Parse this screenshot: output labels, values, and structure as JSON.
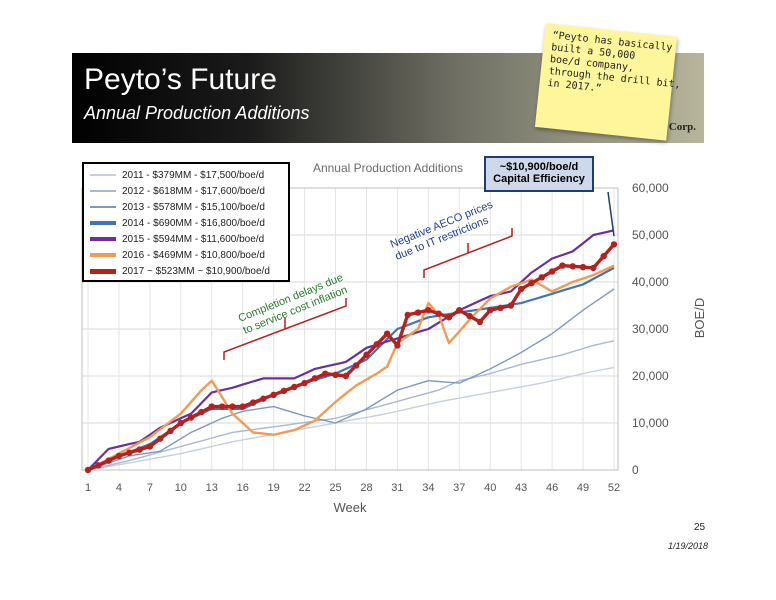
{
  "slide": {
    "title": "Peyto’s Future",
    "subtitle": "Annual Production Additions",
    "logo_text": "Corp.",
    "note_lines": [
      "“Peyto has basically",
      "built a 50,000",
      "boe/d company,",
      "through the drill bit,",
      "in 2017.”"
    ],
    "callout_line1": "~$10,900/boe/d",
    "callout_line2": "Capital Efficiency",
    "page_number": "25",
    "date": "1/19/2018",
    "annotation_completion_line1": "Completion delays due",
    "annotation_completion_line2": "to service cost inflation",
    "annotation_aeco_line1": "Negative AECO prices",
    "annotation_aeco_line2": "due to IT restrictions"
  },
  "chart_data": {
    "type": "line",
    "title": "Annual Production Additions",
    "xlabel": "Week",
    "ylabel": "BOE/D",
    "xlim": [
      1,
      52
    ],
    "ylim": [
      0,
      60000
    ],
    "x_ticks": [
      1,
      4,
      7,
      10,
      13,
      16,
      19,
      22,
      25,
      28,
      31,
      34,
      37,
      40,
      43,
      46,
      49,
      52
    ],
    "y_ticks": [
      0,
      10000,
      20000,
      30000,
      40000,
      50000,
      60000
    ],
    "y_tick_labels": [
      "0",
      "10,000",
      "20,000",
      "30,000",
      "40,000",
      "50,000",
      "60,000"
    ],
    "grid": true,
    "legend_position": "top-left",
    "series": [
      {
        "name": "2011 - $379MM - $17,500/boe/d",
        "color": "#c5cfe0",
        "width": 1.4,
        "anchors": [
          [
            1,
            0
          ],
          [
            5,
            1500
          ],
          [
            10,
            3500
          ],
          [
            15,
            6000
          ],
          [
            20,
            8000
          ],
          [
            25,
            10000
          ],
          [
            30,
            12000
          ],
          [
            35,
            14500
          ],
          [
            40,
            16500
          ],
          [
            45,
            18500
          ],
          [
            50,
            21000
          ],
          [
            52,
            21800
          ]
        ]
      },
      {
        "name": "2012 - $618MM - $17,600/boe/d",
        "color": "#a9b8d4",
        "width": 1.4,
        "anchors": [
          [
            1,
            0
          ],
          [
            5,
            2000
          ],
          [
            10,
            5000
          ],
          [
            15,
            8000
          ],
          [
            20,
            9500
          ],
          [
            25,
            11000
          ],
          [
            30,
            14000
          ],
          [
            35,
            17000
          ],
          [
            37,
            19000
          ],
          [
            40,
            20500
          ],
          [
            43,
            22500
          ],
          [
            47,
            24500
          ],
          [
            50,
            26500
          ],
          [
            52,
            27500
          ]
        ]
      },
      {
        "name": "2013 - $578MM - $15,100/boe/d",
        "color": "#7f98c3",
        "width": 1.4,
        "anchors": [
          [
            1,
            0
          ],
          [
            5,
            3000
          ],
          [
            8,
            4000
          ],
          [
            11,
            8000
          ],
          [
            14,
            11000
          ],
          [
            16,
            12500
          ],
          [
            19,
            13500
          ],
          [
            22,
            11500
          ],
          [
            25,
            10000
          ],
          [
            28,
            13000
          ],
          [
            31,
            17000
          ],
          [
            34,
            19000
          ],
          [
            37,
            18500
          ],
          [
            40,
            21500
          ],
          [
            43,
            25000
          ],
          [
            46,
            29000
          ],
          [
            49,
            34000
          ],
          [
            52,
            38500
          ]
        ]
      },
      {
        "name": "2014 - $690MM - $16,800/boe/d",
        "color": "#3f74b8",
        "width": 2.2,
        "anchors": [
          [
            1,
            0
          ],
          [
            4,
            3000
          ],
          [
            7,
            5500
          ],
          [
            10,
            10000
          ],
          [
            13,
            13000
          ],
          [
            16,
            13000
          ],
          [
            19,
            16000
          ],
          [
            22,
            18500
          ],
          [
            25,
            20500
          ],
          [
            28,
            23500
          ],
          [
            31,
            30000
          ],
          [
            34,
            32500
          ],
          [
            37,
            33500
          ],
          [
            40,
            34500
          ],
          [
            43,
            35500
          ],
          [
            46,
            37500
          ],
          [
            49,
            39500
          ],
          [
            52,
            43000
          ]
        ]
      },
      {
        "name": "2015 - $594MM - $11,600/boe/d",
        "color": "#6b2fa0",
        "width": 2.2,
        "anchors": [
          [
            1,
            0
          ],
          [
            3,
            4500
          ],
          [
            6,
            6000
          ],
          [
            8,
            9000
          ],
          [
            11,
            12000
          ],
          [
            13,
            16500
          ],
          [
            15,
            17500
          ],
          [
            18,
            19500
          ],
          [
            21,
            19500
          ],
          [
            23,
            21500
          ],
          [
            26,
            23000
          ],
          [
            28,
            26000
          ],
          [
            31,
            28000
          ],
          [
            34,
            30000
          ],
          [
            37,
            34000
          ],
          [
            40,
            37000
          ],
          [
            42,
            38000
          ],
          [
            44,
            42000
          ],
          [
            46,
            45000
          ],
          [
            48,
            46500
          ],
          [
            50,
            50000
          ],
          [
            52,
            51000
          ]
        ]
      },
      {
        "name": "2016 - $469MM - $10,800/boe/d",
        "color": "#f39a55",
        "width": 2.4,
        "anchors": [
          [
            1,
            0
          ],
          [
            4,
            3500
          ],
          [
            7,
            7000
          ],
          [
            10,
            12000
          ],
          [
            12,
            17000
          ],
          [
            13,
            19000
          ],
          [
            15,
            12000
          ],
          [
            17,
            8000
          ],
          [
            19,
            7500
          ],
          [
            21,
            8500
          ],
          [
            23,
            10500
          ],
          [
            25,
            14500
          ],
          [
            27,
            18000
          ],
          [
            29,
            20500
          ],
          [
            30,
            22000
          ],
          [
            31,
            27000
          ],
          [
            33,
            30000
          ],
          [
            34,
            35500
          ],
          [
            35,
            33000
          ],
          [
            36,
            27000
          ],
          [
            38,
            32000
          ],
          [
            40,
            36500
          ],
          [
            42,
            39000
          ],
          [
            44,
            40500
          ],
          [
            46,
            38000
          ],
          [
            48,
            40000
          ],
          [
            50,
            41500
          ],
          [
            52,
            43500
          ]
        ]
      },
      {
        "name": "2017 ~ $523MM ~ $10,900/boe/d",
        "color": "#b5211e",
        "width": 3.4,
        "markers": true,
        "anchors": [
          [
            1,
            0
          ],
          [
            4,
            3000
          ],
          [
            7,
            5000
          ],
          [
            10,
            10000
          ],
          [
            13,
            13500
          ],
          [
            16,
            13500
          ],
          [
            19,
            16000
          ],
          [
            22,
            18500
          ],
          [
            24,
            20500
          ],
          [
            26,
            20000
          ],
          [
            28,
            24500
          ],
          [
            30,
            29000
          ],
          [
            31,
            26500
          ],
          [
            32,
            33000
          ],
          [
            34,
            34000
          ],
          [
            36,
            32500
          ],
          [
            37,
            34000
          ],
          [
            39,
            31500
          ],
          [
            40,
            34000
          ],
          [
            42,
            35000
          ],
          [
            43,
            38500
          ],
          [
            45,
            41000
          ],
          [
            47,
            43500
          ],
          [
            50,
            43000
          ],
          [
            52,
            48000
          ]
        ]
      }
    ]
  }
}
